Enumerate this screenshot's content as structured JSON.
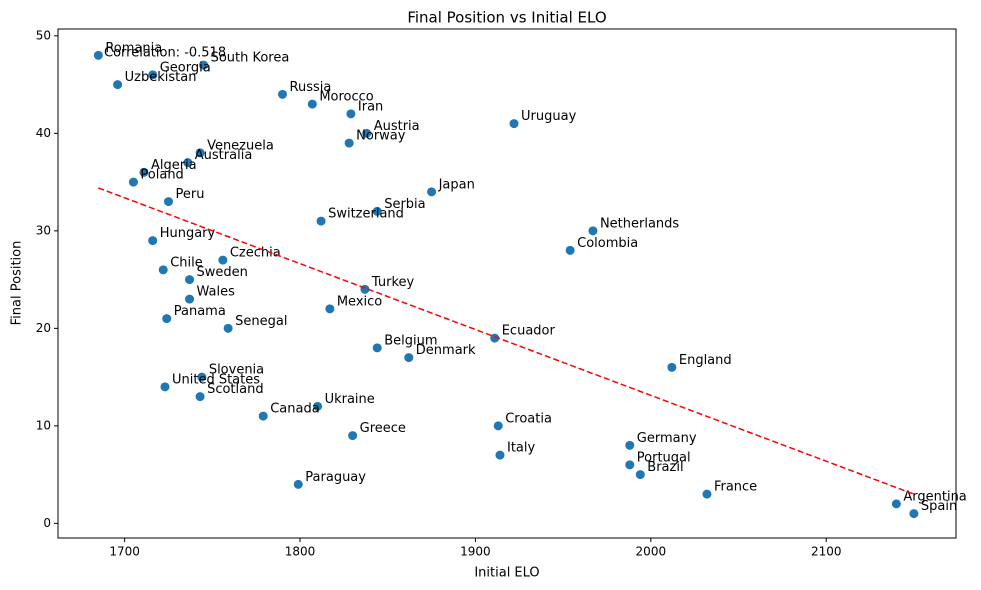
{
  "chart_data": {
    "type": "scatter",
    "title": "Final Position vs Initial ELO",
    "x_label": "Initial ELO",
    "y_label": "Final Position",
    "annotation": "Correlation: -0.518",
    "labels": [
      "Romania",
      "South Korea",
      "Georgia",
      "Uzbekistan",
      "Russia",
      "Morocco",
      "Iran",
      "Austria",
      "Norway",
      "Uruguay",
      "Venezuela",
      "Australia",
      "Algeria",
      "Poland",
      "Peru",
      "Japan",
      "Serbia",
      "Switzerland",
      "Netherlands",
      "Colombia",
      "Hungary",
      "Czechia",
      "Chile",
      "Sweden",
      "Turkey",
      "Wales",
      "Mexico",
      "Panama",
      "Senegal",
      "Ecuador",
      "Belgium",
      "Denmark",
      "England",
      "Slovenia",
      "United States",
      "Scotland",
      "Ukraine",
      "Canada",
      "Croatia",
      "Greece",
      "Germany",
      "Italy",
      "Portugal",
      "Brazil",
      "Paraguay",
      "France",
      "Argentina",
      "Spain"
    ],
    "x": [
      1685,
      1745,
      1716,
      1696,
      1790,
      1807,
      1829,
      1838,
      1828,
      1922,
      1743,
      1736,
      1711,
      1705,
      1725,
      1875,
      1844,
      1812,
      1967,
      1954,
      1716,
      1756,
      1722,
      1737,
      1837,
      1737,
      1817,
      1724,
      1759,
      1911,
      1844,
      1862,
      2012,
      1744,
      1723,
      1743,
      1810,
      1779,
      1913,
      1830,
      1988,
      1914,
      1988,
      1994,
      1799,
      2032,
      2140,
      2150
    ],
    "y": [
      48,
      47,
      46,
      45,
      44,
      43,
      42,
      40,
      39,
      41,
      38,
      37,
      36,
      35,
      33,
      34,
      32,
      31,
      30,
      28,
      29,
      27,
      26,
      25,
      24,
      23,
      22,
      21,
      20,
      19,
      18,
      17,
      16,
      15,
      14,
      13,
      12,
      11,
      10,
      9,
      8,
      7,
      6,
      5,
      4,
      3,
      2,
      1
    ],
    "color": "#1f77b4",
    "trendline": {
      "x": [
        1685,
        2150
      ],
      "y": [
        34.4,
        3.0
      ],
      "color": "#ff0000"
    },
    "xlim": [
      1662,
      2174
    ],
    "ylim": [
      -1.5,
      50.7
    ],
    "xticks": [
      1700,
      1800,
      1900,
      2000,
      2100
    ],
    "yticks": [
      0,
      10,
      20,
      30,
      40,
      50
    ]
  }
}
